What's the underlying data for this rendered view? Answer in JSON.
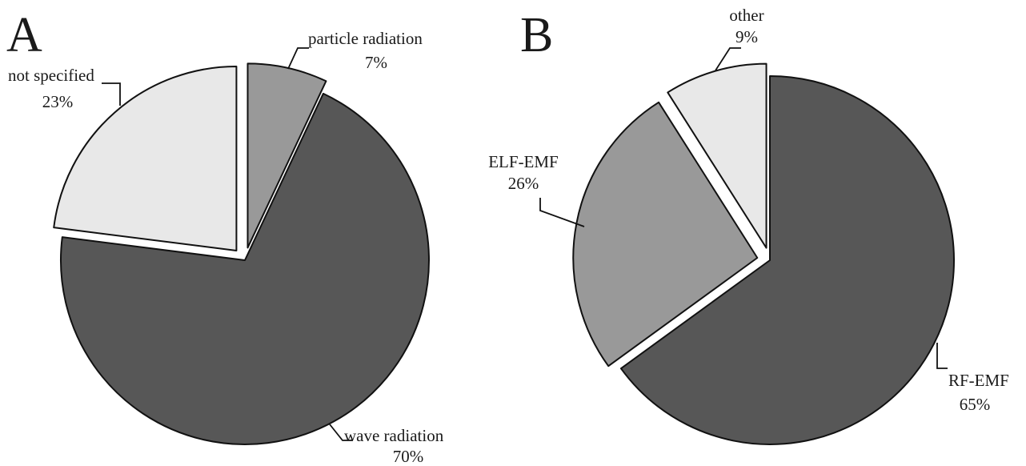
{
  "colors": {
    "dark": "#575757",
    "medium": "#999999",
    "light": "#e8e8e8",
    "outline": "#111111"
  },
  "chart_data": [
    {
      "type": "pie",
      "panel": "A",
      "slices": [
        {
          "label": "particle radiation",
          "value": 7,
          "value_label": "7%",
          "color": "#999999",
          "exploded": true
        },
        {
          "label": "wave radiation",
          "value": 70,
          "value_label": "70%",
          "color": "#575757",
          "exploded": false
        },
        {
          "label": "not specified",
          "value": 23,
          "value_label": "23%",
          "color": "#e8e8e8",
          "exploded": true
        }
      ]
    },
    {
      "type": "pie",
      "panel": "B",
      "slices": [
        {
          "label": "RF-EMF",
          "value": 65,
          "value_label": "65%",
          "color": "#575757",
          "exploded": false
        },
        {
          "label": "ELF-EMF",
          "value": 26,
          "value_label": "26%",
          "color": "#999999",
          "exploded": true
        },
        {
          "label": "other",
          "value": 9,
          "value_label": "9%",
          "color": "#e8e8e8",
          "exploded": true
        }
      ]
    }
  ]
}
